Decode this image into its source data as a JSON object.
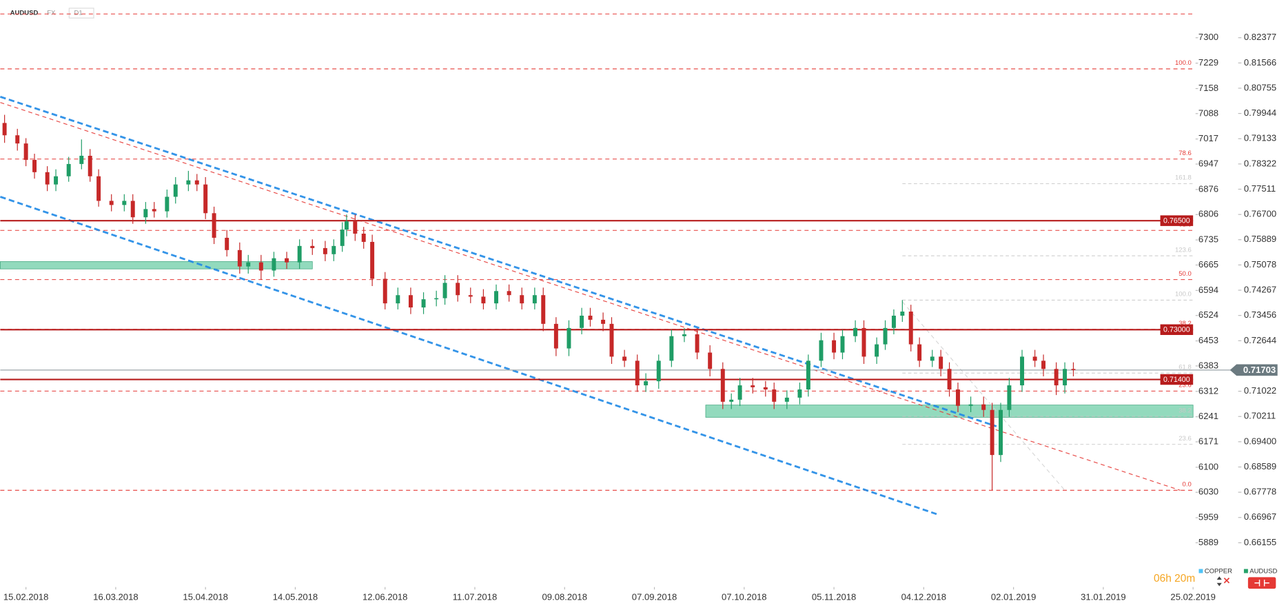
{
  "chart_data": {
    "type": "candlestick",
    "symbol": "AUDUSD",
    "market": "FX",
    "interval": "D1",
    "x": [
      0,
      3,
      5,
      7,
      10,
      12,
      15,
      18,
      20,
      22,
      25,
      28,
      30,
      33,
      35,
      38,
      40,
      43,
      45,
      47,
      49,
      52,
      55,
      57,
      60,
      63,
      66,
      69,
      72,
      75,
      77,
      79,
      80,
      82,
      84,
      86,
      89,
      92,
      95,
      98,
      101,
      103,
      106,
      109,
      112,
      115,
      118,
      121,
      124,
      126,
      129,
      132,
      135,
      137,
      140,
      142,
      145,
      148,
      150,
      153,
      156,
      159,
      162,
      165,
      168,
      170,
      172,
      175,
      178,
      180,
      183,
      186,
      188,
      191,
      194,
      196,
      199,
      201,
      204,
      206,
      208,
      210,
      212,
      214,
      217,
      219,
      221,
      223,
      226,
      229,
      231,
      233,
      235,
      238,
      241,
      243,
      246,
      248,
      250
    ],
    "open": [
      0.79638,
      0.79243,
      0.7898,
      0.78453,
      0.78058,
      0.77663,
      0.77926,
      0.78321,
      0.78585,
      0.77926,
      0.77136,
      0.77004,
      0.77136,
      0.76609,
      0.76873,
      0.768,
      0.77268,
      0.77663,
      0.77795,
      0.77663,
      0.76741,
      0.75951,
      0.75556,
      0.75029,
      0.75161,
      0.74898,
      0.75293,
      0.75161,
      0.75688,
      0.7562,
      0.75424,
      0.75688,
      0.76214,
      0.76478,
      0.76083,
      0.75819,
      0.74634,
      0.73844,
      0.74108,
      0.73713,
      0.73976,
      0.7401,
      0.74503,
      0.74108,
      0.7406,
      0.73844,
      0.74239,
      0.74108,
      0.73844,
      0.74108,
      0.73186,
      0.72396,
      0.73054,
      0.73449,
      0.73318,
      0.73186,
      0.72133,
      0.72001,
      0.71211,
      0.71343,
      0.72001,
      0.72791,
      0.7285,
      0.72264,
      0.71738,
      0.70684,
      0.7075,
      0.71211,
      0.7115,
      0.71079,
      0.70684,
      0.70816,
      0.71079,
      0.72001,
      0.72659,
      0.72264,
      0.72791,
      0.73054,
      0.72133,
      0.72528,
      0.73054,
      0.73449,
      0.73581,
      0.72528,
      0.72001,
      0.72133,
      0.71738,
      0.71079,
      0.70553,
      0.706,
      0.70421,
      0.68973,
      0.70421,
      0.71211,
      0.72133,
      0.72001,
      0.71738,
      0.71211,
      0.71738
    ],
    "high": [
      0.799,
      0.7945,
      0.7915,
      0.7865,
      0.7825,
      0.7815,
      0.7855,
      0.7911,
      0.788,
      0.7815,
      0.7735,
      0.7735,
      0.7735,
      0.771,
      0.771,
      0.775,
      0.779,
      0.781,
      0.78,
      0.779,
      0.7695,
      0.762,
      0.758,
      0.754,
      0.754,
      0.755,
      0.755,
      0.759,
      0.759,
      0.7585,
      0.759,
      0.7645,
      0.767,
      0.767,
      0.763,
      0.7605,
      0.7485,
      0.7435,
      0.7435,
      0.742,
      0.7425,
      0.7475,
      0.7475,
      0.7435,
      0.743,
      0.7445,
      0.7445,
      0.7435,
      0.7435,
      0.7435,
      0.734,
      0.733,
      0.737,
      0.737,
      0.7355,
      0.734,
      0.7235,
      0.722,
      0.716,
      0.722,
      0.73,
      0.7305,
      0.7305,
      0.725,
      0.7195,
      0.7095,
      0.7145,
      0.7145,
      0.7135,
      0.713,
      0.7105,
      0.713,
      0.722,
      0.729,
      0.729,
      0.73,
      0.733,
      0.733,
      0.7275,
      0.733,
      0.7365,
      0.7395,
      0.738,
      0.7275,
      0.7235,
      0.7235,
      0.7195,
      0.713,
      0.7085,
      0.7085,
      0.7065,
      0.7065,
      0.7145,
      0.7235,
      0.7235,
      0.722,
      0.7195,
      0.7195,
      0.7195
    ],
    "low": [
      0.79,
      0.7875,
      0.7825,
      0.7785,
      0.7745,
      0.7745,
      0.7775,
      0.7815,
      0.7775,
      0.7695,
      0.768,
      0.768,
      0.764,
      0.764,
      0.766,
      0.766,
      0.7705,
      0.7745,
      0.7745,
      0.7655,
      0.7575,
      0.7535,
      0.748,
      0.748,
      0.746,
      0.747,
      0.7495,
      0.7495,
      0.754,
      0.752,
      0.752,
      0.755,
      0.76,
      0.7585,
      0.756,
      0.744,
      0.7365,
      0.7365,
      0.735,
      0.735,
      0.7375,
      0.738,
      0.739,
      0.7385,
      0.7365,
      0.7365,
      0.739,
      0.7365,
      0.7365,
      0.7295,
      0.7215,
      0.7215,
      0.7285,
      0.731,
      0.7295,
      0.719,
      0.718,
      0.71,
      0.71,
      0.711,
      0.718,
      0.726,
      0.7205,
      0.715,
      0.7045,
      0.7045,
      0.7055,
      0.7095,
      0.7085,
      0.7045,
      0.7045,
      0.706,
      0.7085,
      0.718,
      0.7205,
      0.7205,
      0.726,
      0.719,
      0.719,
      0.7235,
      0.7285,
      0.7325,
      0.723,
      0.718,
      0.718,
      0.715,
      0.7085,
      0.7035,
      0.7035,
      0.702,
      0.6784,
      0.6875,
      0.702,
      0.71,
      0.718,
      0.715,
      0.709,
      0.7095,
      0.715
    ],
    "close": [
      0.79243,
      0.7898,
      0.78453,
      0.78058,
      0.77663,
      0.77926,
      0.78321,
      0.78585,
      0.77926,
      0.77136,
      0.77004,
      0.77136,
      0.76609,
      0.76873,
      0.768,
      0.77268,
      0.77663,
      0.77795,
      0.77663,
      0.76741,
      0.75951,
      0.75556,
      0.75029,
      0.75161,
      0.74898,
      0.75293,
      0.75161,
      0.75688,
      0.7562,
      0.75424,
      0.75688,
      0.76214,
      0.76478,
      0.76083,
      0.75819,
      0.74634,
      0.73844,
      0.74108,
      0.73713,
      0.73976,
      0.7401,
      0.74503,
      0.74108,
      0.7406,
      0.73844,
      0.74239,
      0.74108,
      0.73844,
      0.74108,
      0.73186,
      0.72396,
      0.73054,
      0.73449,
      0.73318,
      0.73186,
      0.72133,
      0.72001,
      0.71211,
      0.71343,
      0.72001,
      0.72791,
      0.7285,
      0.72264,
      0.71738,
      0.70684,
      0.7075,
      0.71211,
      0.7115,
      0.71079,
      0.70684,
      0.70816,
      0.71079,
      0.72001,
      0.72659,
      0.72264,
      0.72791,
      0.73054,
      0.72133,
      0.72528,
      0.73054,
      0.73449,
      0.73581,
      0.72528,
      0.72001,
      0.72133,
      0.71738,
      0.71079,
      0.70553,
      0.706,
      0.70421,
      0.68973,
      0.70421,
      0.71211,
      0.72133,
      0.72001,
      0.71738,
      0.71211,
      0.71738,
      0.71703
    ],
    "up_color": "#1f9d66",
    "down_color": "#c62828",
    "xlim": [
      -1,
      278
    ],
    "xticks": [
      {
        "value": 5,
        "label": "15.02.2018"
      },
      {
        "value": 26,
        "label": "16.03.2018"
      },
      {
        "value": 47,
        "label": "15.04.2018"
      },
      {
        "value": 68,
        "label": "14.05.2018"
      },
      {
        "value": 89,
        "label": "12.06.2018"
      },
      {
        "value": 110,
        "label": "11.07.2018"
      },
      {
        "value": 131,
        "label": "09.08.2018"
      },
      {
        "value": 152,
        "label": "07.09.2018"
      },
      {
        "value": 173,
        "label": "07.10.2018"
      },
      {
        "value": 194,
        "label": "05.11.2018"
      },
      {
        "value": 215,
        "label": "04.12.2018"
      },
      {
        "value": 236,
        "label": "02.01.2019"
      },
      {
        "value": 257,
        "label": "31.01.2019"
      },
      {
        "value": 278,
        "label": "25.02.2019"
      }
    ],
    "ylim": [
      0.64759,
      0.83588
    ],
    "yticks": [
      0.82377,
      0.81566,
      0.80755,
      0.79944,
      0.79133,
      0.78322,
      0.77511,
      {
        "value": 0.767,
        "label": "0.76700"
      },
      0.75889,
      0.75078,
      0.74267,
      0.73456,
      0.72644,
      0.71022,
      0.70211,
      {
        "value": 0.694,
        "label": "0.69400"
      },
      0.68589,
      0.67778,
      0.66967,
      0.66155
    ],
    "y2lim": [
      5767.6,
      7405.4
    ],
    "y2ticks": [
      7300,
      7229,
      7158,
      7088,
      7017,
      6947,
      6876,
      6806,
      6735,
      6665,
      6594,
      6524,
      6453,
      6383,
      6312,
      6241,
      6171,
      6100,
      6030,
      5959,
      5889
    ],
    "levels": [
      {
        "value": 0.765,
        "label": "0.76500"
      },
      {
        "value": 0.73,
        "label": "0.73000"
      },
      {
        "value": 0.714,
        "label": "0.71400"
      }
    ],
    "level_color": "#b71c1c",
    "last_price": {
      "value": 0.71703,
      "label": "0.71703"
    },
    "fib_color": "#e53935",
    "fib_lines": [
      {
        "value": 0.8314
      },
      {
        "value": 0.81376,
        "label": "100.0"
      },
      {
        "value": 0.78479,
        "label": "78.6"
      },
      {
        "value": 0.76188,
        "label": "61.8"
      },
      {
        "value": 0.74608,
        "label": "50.0"
      },
      {
        "value": 0.73011,
        "label": "38.2"
      },
      {
        "value": 0.71027,
        "label": "23.6"
      },
      {
        "value": 0.6784,
        "label": "0.0"
      }
    ],
    "fib2_color": "#c8c8c8",
    "fib2_start": 210,
    "fib2_lines": [
      {
        "value": 0.77689,
        "label": "161.8"
      },
      {
        "value": 0.75371,
        "label": "123.6"
      },
      {
        "value": 0.7395,
        "label": "100.0"
      },
      {
        "value": 0.71606,
        "label": "61.8"
      },
      {
        "value": 0.7021,
        "label": "38.2"
      },
      {
        "value": 0.69315,
        "label": "23.6"
      }
    ],
    "zone_color": "#7fd4b1",
    "zones": [
      {
        "x": [
          -1,
          72
        ],
        "y": [
          0.7495,
          0.75187
        ]
      },
      {
        "x": [
          164,
          278
        ],
        "y": [
          0.70184,
          0.70579
        ]
      }
    ],
    "trendlines": [
      {
        "color": "#1e88e5",
        "x": [
          -1,
          232
        ],
        "y": [
          0.80481,
          0.69895
        ]
      },
      {
        "color": "#e53935",
        "x": [
          -1,
          275
        ],
        "y": [
          0.80296,
          0.6784
        ]
      },
      {
        "color": "#1e88e5",
        "x": [
          -1,
          218
        ],
        "y": [
          0.77268,
          0.67077
        ]
      },
      {
        "color": "#d0d0d0",
        "x": [
          210,
          248
        ],
        "y": [
          0.73897,
          0.6784
        ]
      }
    ],
    "legend": [
      {
        "name": "COPPER",
        "color": "#4fc3f7"
      },
      {
        "name": "AUDUSD",
        "color": "#26a269"
      }
    ],
    "timer": "06h 20m"
  }
}
